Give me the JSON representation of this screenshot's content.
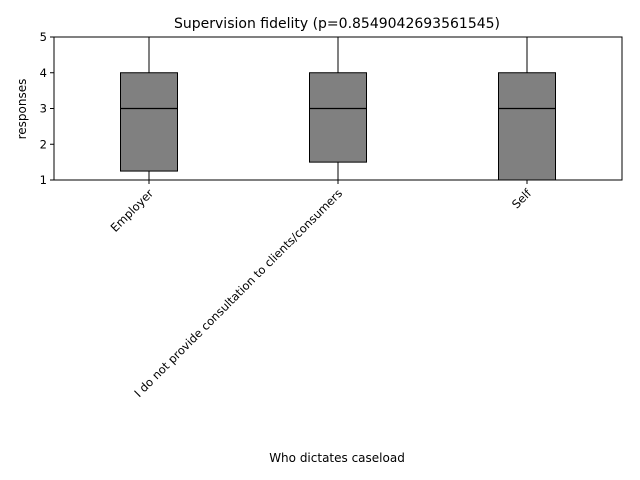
{
  "chart_data": {
    "type": "box",
    "title": "Supervision fidelity (p=0.8549042693561545)",
    "xlabel": "Who dictates caseload",
    "ylabel": "responses",
    "ylim": [
      1,
      5
    ],
    "yticks": [
      1,
      2,
      3,
      4,
      5
    ],
    "categories": [
      "Employer",
      "I do not provide consultation to clients/consumers",
      "Self"
    ],
    "boxes": [
      {
        "category": "Employer",
        "whisker_low": 1,
        "q1": 1.25,
        "median": 3,
        "q3": 4,
        "whisker_high": 5
      },
      {
        "category": "I do not provide consultation to clients/consumers",
        "whisker_low": 1,
        "q1": 1.5,
        "median": 3,
        "q3": 4,
        "whisker_high": 5
      },
      {
        "category": "Self",
        "whisker_low": 1,
        "q1": 1,
        "median": 3,
        "q3": 4,
        "whisker_high": 5
      }
    ],
    "box_color": "#808080",
    "edge_color": "#000000",
    "grid": false,
    "tick_label_rotation_deg": 45
  }
}
